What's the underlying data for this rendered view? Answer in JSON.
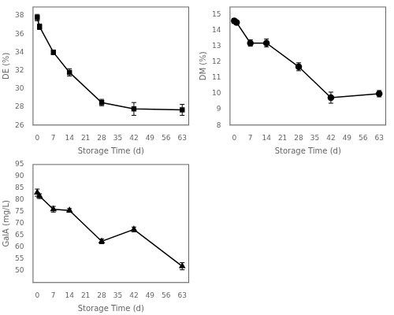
{
  "chart_data": [
    {
      "type": "line",
      "x": [
        0,
        1,
        7,
        14,
        28,
        42,
        63
      ],
      "values": [
        37.8,
        36.8,
        34.0,
        31.8,
        28.5,
        27.8,
        27.7
      ],
      "errors": [
        0.35,
        0.3,
        0.25,
        0.4,
        0.35,
        0.7,
        0.6
      ],
      "xlabel": "Storage Time (d)",
      "ylabel": "DE (%)",
      "xlim": [
        -2,
        66
      ],
      "xticks": [
        0,
        7,
        14,
        21,
        28,
        35,
        42,
        49,
        56,
        63
      ],
      "ylim": [
        26,
        39
      ],
      "yticks": [
        26,
        28,
        30,
        32,
        34,
        36,
        38
      ],
      "marker": "square",
      "color": "black",
      "grid": false
    },
    {
      "type": "line",
      "x": [
        0,
        1,
        7,
        14,
        28,
        42,
        63
      ],
      "values": [
        14.6,
        14.5,
        13.2,
        13.2,
        11.7,
        9.75,
        10.0
      ],
      "errors": [
        0.15,
        0.12,
        0.2,
        0.25,
        0.25,
        0.35,
        0.2
      ],
      "xlabel": "Storage Time (d)",
      "ylabel": "DM (%)",
      "xlim": [
        -2,
        66
      ],
      "xticks": [
        0,
        7,
        14,
        21,
        28,
        35,
        42,
        49,
        56,
        63
      ],
      "ylim": [
        8,
        15.5
      ],
      "yticks": [
        8,
        9,
        10,
        11,
        12,
        13,
        14,
        15
      ],
      "marker": "circle",
      "color": "black",
      "grid": false
    },
    {
      "type": "line",
      "x": [
        0,
        1,
        7,
        14,
        28,
        42,
        63
      ],
      "values": [
        83.0,
        81.5,
        76.0,
        75.5,
        62.5,
        67.5,
        52.0
      ],
      "errors": [
        1.5,
        1.0,
        1.2,
        0.8,
        1.0,
        1.0,
        1.5
      ],
      "xlabel": "Storage Time (d)",
      "ylabel": "GalA (mg/L)",
      "xlim": [
        -2,
        66
      ],
      "xticks": [
        0,
        7,
        14,
        21,
        28,
        35,
        42,
        49,
        56,
        63
      ],
      "ylim": [
        45,
        95
      ],
      "yticks": [
        50,
        55,
        60,
        65,
        70,
        75,
        80,
        85,
        90,
        95
      ],
      "marker": "triangle",
      "color": "black",
      "grid": false
    }
  ]
}
